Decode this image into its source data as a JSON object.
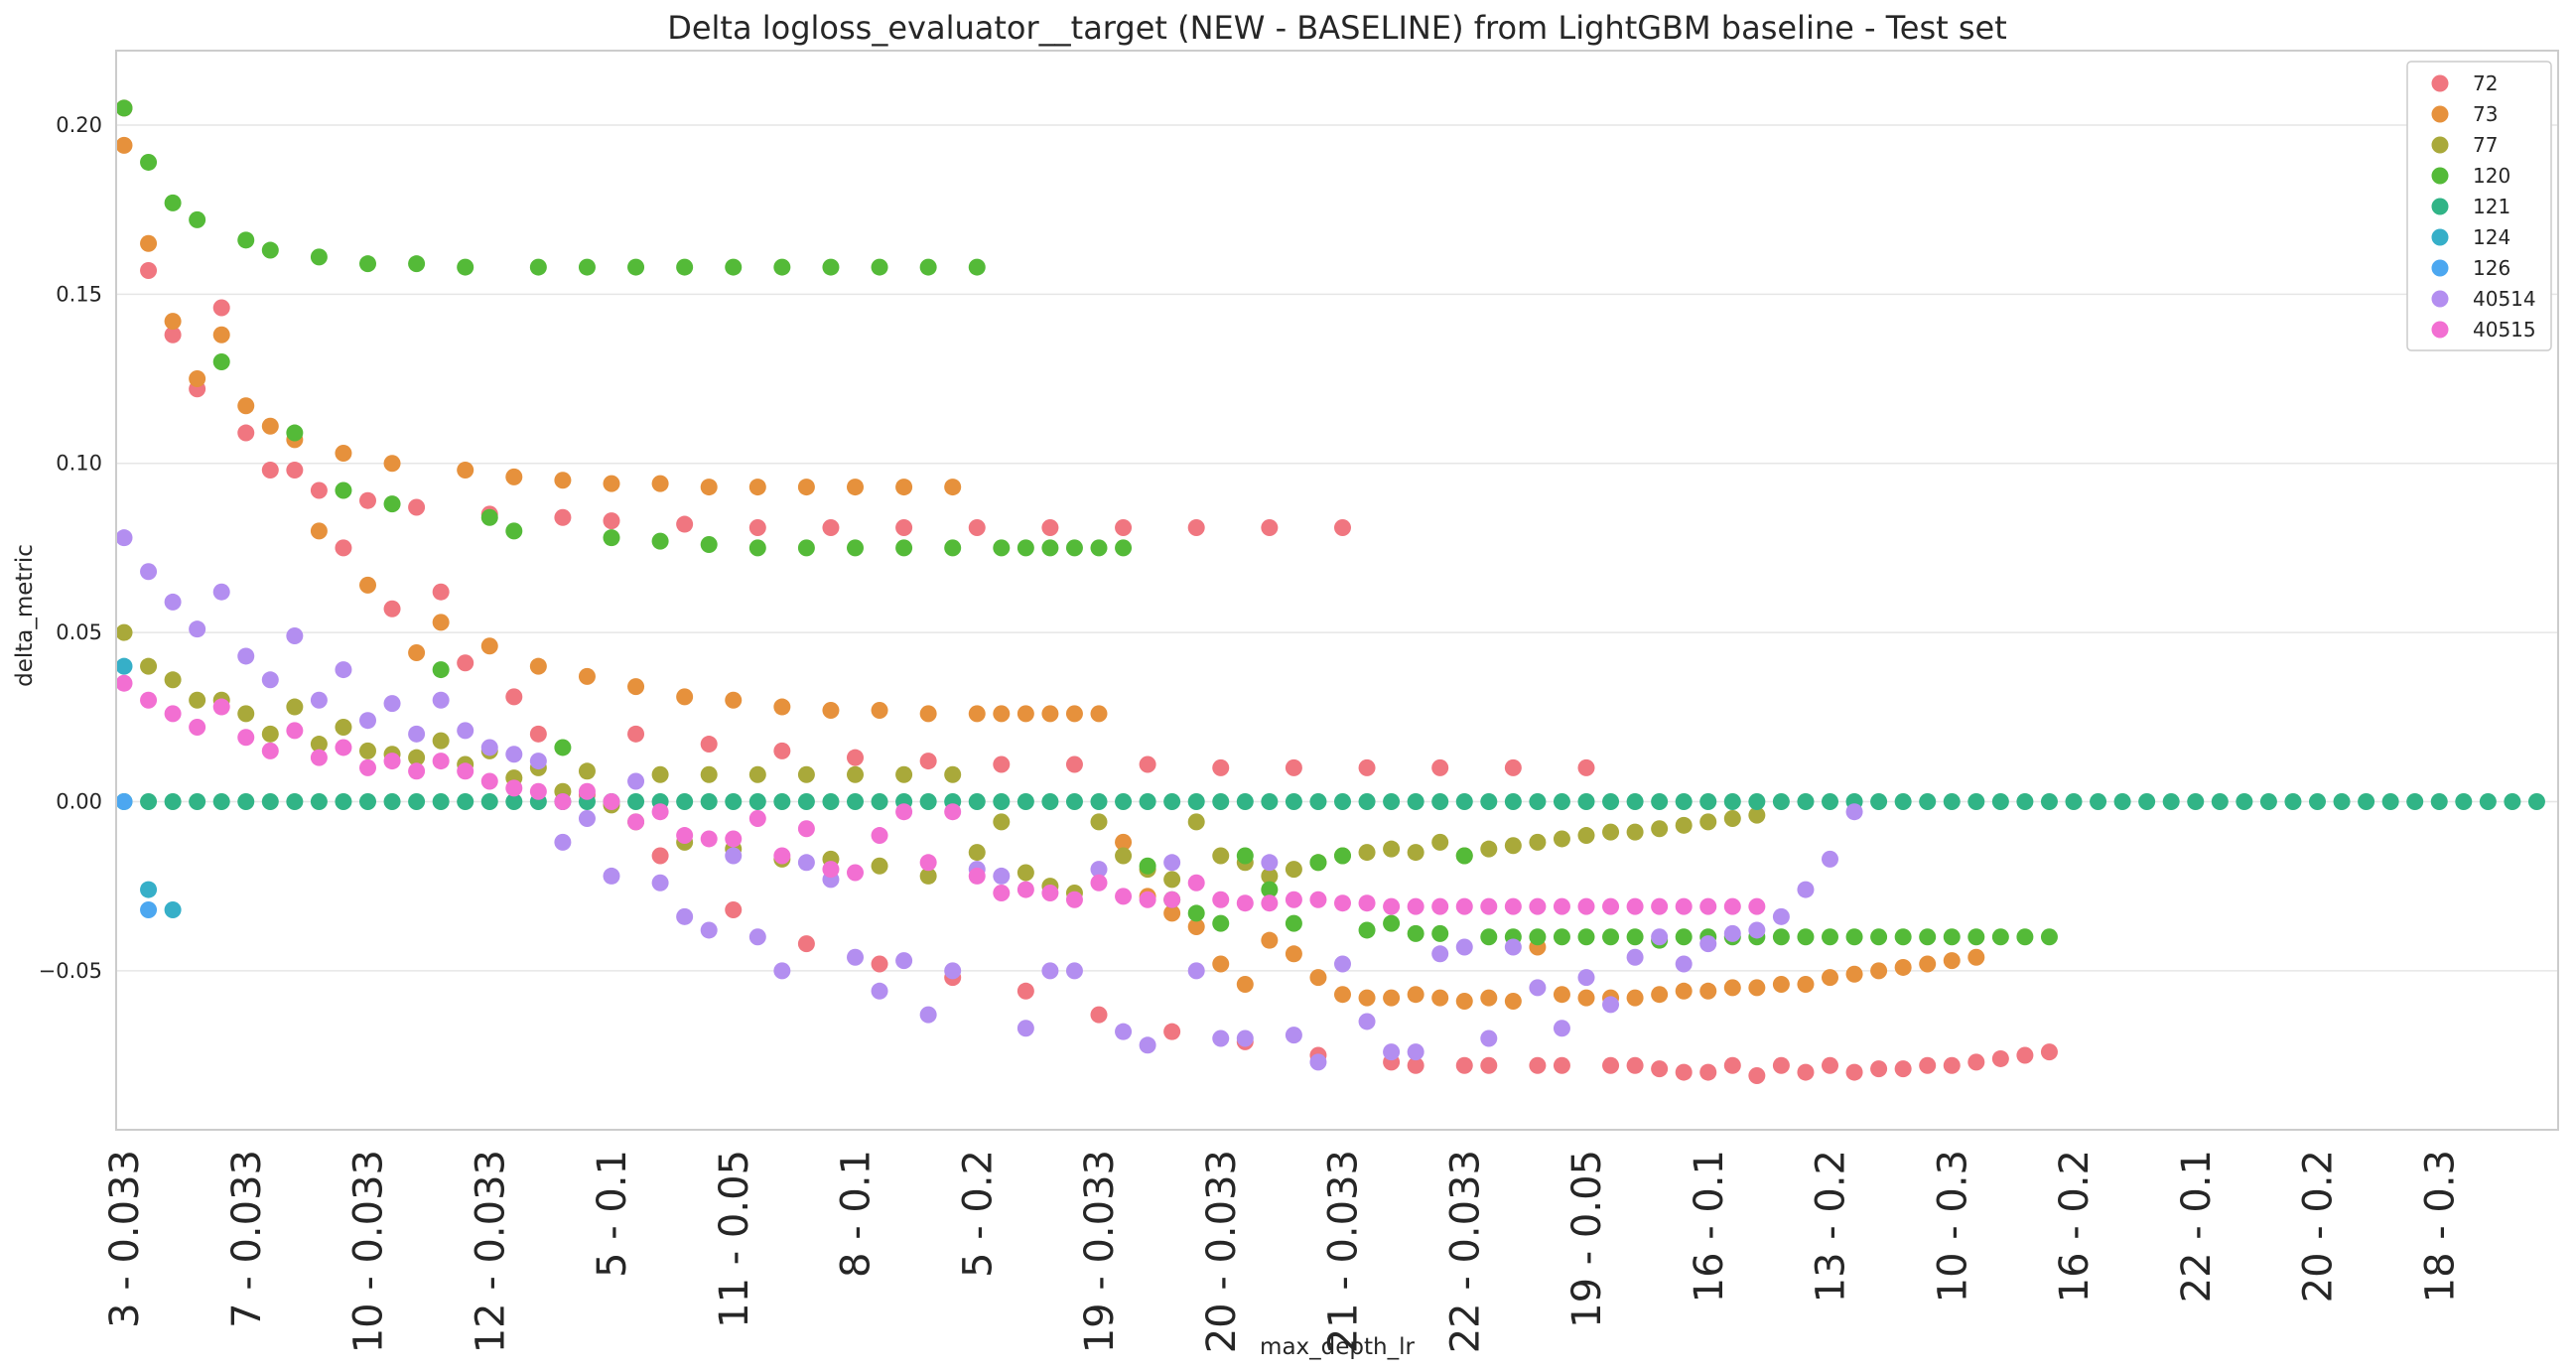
{
  "chart_data": {
    "type": "scatter",
    "title": "Delta logloss_evaluator__target (NEW - BASELINE) from LightGBM baseline - Test set",
    "xlabel": "max_depth_lr",
    "ylabel": "delta_metric",
    "ylim": [
      -0.097,
      0.222
    ],
    "yticks": [
      -0.05,
      0.0,
      0.05,
      0.1,
      0.15,
      0.2
    ],
    "ytick_labels": [
      "−0.05",
      "0.00",
      "0.05",
      "0.10",
      "0.15",
      "0.20"
    ],
    "n_categories": 100,
    "xtick_labels": [
      "3 - 0.033",
      "7 - 0.033",
      "10 - 0.033",
      "12 - 0.033",
      "5 - 0.1",
      "11 - 0.05",
      "8 - 0.1",
      "5 - 0.2",
      "19 - 0.033",
      "20 - 0.033",
      "21 - 0.033",
      "22 - 0.033",
      "19 - 0.05",
      "16 - 0.1",
      "13 - 0.2",
      "10 - 0.3",
      "16 - 0.2",
      "22 - 0.1",
      "20 - 0.2",
      "18 - 0.3"
    ],
    "xtick_index_step": 5,
    "grid": true,
    "legend_position": "top-right",
    "series": [
      {
        "name": "72",
        "color": "#f07680",
        "values": [
          0.205,
          0.157,
          0.138,
          0.122,
          0.146,
          0.109,
          0.098,
          0.098,
          0.092,
          0.075,
          0.089,
          0.057,
          0.087,
          0.062,
          0.041,
          0.085,
          0.031,
          0.02,
          0.084,
          0.002,
          0.083,
          0.02,
          -0.016,
          0.082,
          0.017,
          -0.032,
          0.081,
          0.015,
          -0.042,
          0.081,
          0.013,
          -0.048,
          0.081,
          0.012,
          -0.052,
          0.081,
          0.011,
          -0.056,
          0.081,
          0.011,
          -0.063,
          0.081,
          0.011,
          -0.068,
          0.081,
          0.01,
          -0.071,
          0.081,
          0.01,
          -0.075,
          0.081,
          0.01,
          -0.077,
          -0.078,
          0.01,
          -0.078,
          -0.078,
          0.01,
          -0.078,
          -0.078,
          0.01,
          -0.078,
          -0.078,
          -0.079,
          -0.08,
          -0.08,
          -0.078,
          -0.081,
          -0.078,
          -0.08,
          -0.078,
          -0.08,
          -0.079,
          -0.079,
          -0.078,
          -0.078,
          -0.077,
          -0.076,
          -0.075,
          -0.074
        ]
      },
      {
        "name": "73",
        "color": "#e6913c",
        "values": [
          0.194,
          0.165,
          0.142,
          0.125,
          0.138,
          0.117,
          0.111,
          0.107,
          0.08,
          0.103,
          0.064,
          0.1,
          0.044,
          0.053,
          0.098,
          0.046,
          0.096,
          0.04,
          0.095,
          0.037,
          0.094,
          0.034,
          0.094,
          0.031,
          0.093,
          0.03,
          0.093,
          0.028,
          0.093,
          0.027,
          0.093,
          0.027,
          0.093,
          0.026,
          0.093,
          0.026,
          0.026,
          0.026,
          0.026,
          0.026,
          0.026,
          -0.012,
          -0.028,
          -0.033,
          -0.037,
          -0.048,
          -0.054,
          -0.041,
          -0.045,
          -0.052,
          -0.057,
          -0.058,
          -0.058,
          -0.057,
          -0.058,
          -0.059,
          -0.058,
          -0.059,
          -0.043,
          -0.057,
          -0.058,
          -0.058,
          -0.058,
          -0.057,
          -0.056,
          -0.056,
          -0.055,
          -0.055,
          -0.054,
          -0.054,
          -0.052,
          -0.051,
          -0.05,
          -0.049,
          -0.048,
          -0.047,
          -0.046
        ]
      },
      {
        "name": "77",
        "color": "#a9a93a",
        "values": [
          0.05,
          0.04,
          0.036,
          0.03,
          0.03,
          0.026,
          0.02,
          0.028,
          0.017,
          0.022,
          0.015,
          0.014,
          0.013,
          0.018,
          0.011,
          0.015,
          0.007,
          0.01,
          0.003,
          0.009,
          -0.001,
          -0.006,
          0.008,
          -0.012,
          0.008,
          -0.014,
          0.008,
          -0.017,
          0.008,
          -0.017,
          0.008,
          -0.019,
          0.008,
          -0.022,
          0.008,
          -0.015,
          -0.006,
          -0.021,
          -0.025,
          -0.027,
          -0.006,
          -0.016,
          -0.02,
          -0.023,
          -0.006,
          -0.016,
          -0.018,
          -0.022,
          -0.02,
          -0.018,
          -0.016,
          -0.015,
          -0.014,
          -0.015,
          -0.012,
          -0.016,
          -0.014,
          -0.013,
          -0.012,
          -0.011,
          -0.01,
          -0.009,
          -0.009,
          -0.008,
          -0.007,
          -0.006,
          -0.005,
          -0.004
        ]
      },
      {
        "name": "120",
        "color": "#54ba38",
        "values": [
          0.205,
          0.189,
          0.177,
          0.172,
          0.13,
          0.166,
          0.163,
          0.109,
          0.161,
          0.092,
          0.159,
          0.088,
          0.159,
          0.039,
          0.158,
          0.084,
          0.08,
          0.158,
          0.016,
          0.158,
          0.078,
          0.158,
          0.077,
          0.158,
          0.076,
          0.158,
          0.075,
          0.158,
          0.075,
          0.158,
          0.075,
          0.158,
          0.075,
          0.158,
          0.075,
          0.158,
          0.075,
          0.075,
          0.075,
          0.075,
          0.075,
          0.075,
          -0.019,
          -0.029,
          -0.033,
          -0.036,
          -0.016,
          -0.026,
          -0.036,
          -0.018,
          -0.016,
          -0.038,
          -0.036,
          -0.039,
          -0.039,
          -0.016,
          -0.04,
          -0.04,
          -0.04,
          -0.04,
          -0.04,
          -0.04,
          -0.04,
          -0.041,
          -0.04,
          -0.04,
          -0.04,
          -0.04,
          -0.04,
          -0.04,
          -0.04,
          -0.04,
          -0.04,
          -0.04,
          -0.04,
          -0.04,
          -0.04,
          -0.04,
          -0.04,
          -0.04
        ]
      },
      {
        "name": "121",
        "color": "#31b486",
        "values": [
          0,
          0,
          0,
          0,
          0,
          0,
          0,
          0,
          0,
          0,
          0,
          0,
          0,
          0,
          0,
          0,
          0,
          0,
          0,
          0,
          0,
          0,
          0,
          0,
          0,
          0,
          0,
          0,
          0,
          0,
          0,
          0,
          0,
          0,
          0,
          0,
          0,
          0,
          0,
          0,
          0,
          0,
          0,
          0,
          0,
          0,
          0,
          0,
          0,
          0,
          0,
          0,
          0,
          0,
          0,
          0,
          0,
          0,
          0,
          0,
          0,
          0,
          0,
          0,
          0,
          0,
          0,
          0,
          0,
          0,
          0,
          0,
          0,
          0,
          0,
          0,
          0,
          0,
          0,
          0,
          0,
          0,
          0,
          0,
          0,
          0,
          0,
          0,
          0,
          0,
          0,
          0,
          0,
          0,
          0,
          0,
          0,
          0,
          0,
          0
        ]
      },
      {
        "name": "124",
        "color": "#36afc8",
        "values": [
          0.04,
          -0.026,
          -0.032
        ]
      },
      {
        "name": "126",
        "color": "#4ca7f0",
        "values": [
          0.0,
          -0.032
        ]
      },
      {
        "name": "40514",
        "color": "#b38ef0",
        "values": [
          0.078,
          0.068,
          0.059,
          0.051,
          0.062,
          0.043,
          0.036,
          0.049,
          0.03,
          0.039,
          0.024,
          0.029,
          0.02,
          0.03,
          0.021,
          0.016,
          0.014,
          0.012,
          -0.012,
          -0.005,
          -0.022,
          0.006,
          -0.024,
          -0.034,
          -0.038,
          -0.016,
          -0.04,
          -0.05,
          -0.018,
          -0.023,
          -0.046,
          -0.056,
          -0.047,
          -0.063,
          -0.05,
          -0.02,
          -0.022,
          -0.067,
          -0.05,
          -0.05,
          -0.02,
          -0.068,
          -0.072,
          -0.018,
          -0.05,
          -0.07,
          -0.07,
          -0.018,
          -0.069,
          -0.077,
          -0.048,
          -0.065,
          -0.074,
          -0.074,
          -0.045,
          -0.043,
          -0.07,
          -0.043,
          -0.055,
          -0.067,
          -0.052,
          -0.06,
          -0.046,
          -0.04,
          -0.048,
          -0.042,
          -0.039,
          -0.038,
          -0.034,
          -0.026,
          -0.017,
          -0.003
        ]
      },
      {
        "name": "40515",
        "color": "#f26fd2",
        "values": [
          0.035,
          0.03,
          0.026,
          0.022,
          0.028,
          0.019,
          0.015,
          0.021,
          0.013,
          0.016,
          0.01,
          0.012,
          0.009,
          0.012,
          0.009,
          0.006,
          0.004,
          0.003,
          0.0,
          0.003,
          0.0,
          -0.006,
          -0.003,
          -0.01,
          -0.011,
          -0.011,
          -0.005,
          -0.016,
          -0.008,
          -0.02,
          -0.021,
          -0.01,
          -0.003,
          -0.018,
          -0.003,
          -0.022,
          -0.027,
          -0.026,
          -0.027,
          -0.029,
          -0.024,
          -0.028,
          -0.029,
          -0.029,
          -0.024,
          -0.029,
          -0.03,
          -0.03,
          -0.029,
          -0.029,
          -0.03,
          -0.03,
          -0.031,
          -0.031,
          -0.031,
          -0.031,
          -0.031,
          -0.031,
          -0.031,
          -0.031,
          -0.031,
          -0.031,
          -0.031,
          -0.031,
          -0.031,
          -0.031,
          -0.031,
          -0.031
        ]
      }
    ]
  }
}
